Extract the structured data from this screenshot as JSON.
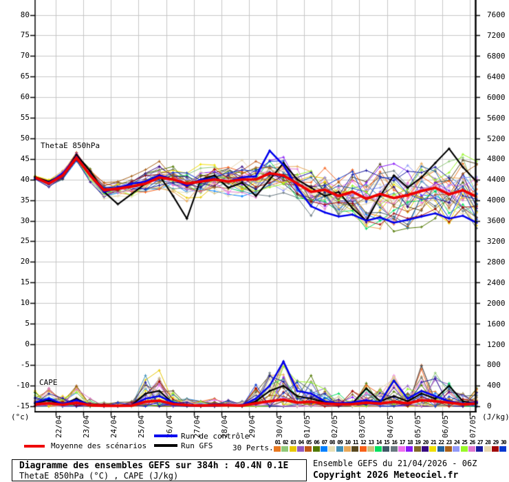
{
  "chart_data": {
    "type": "line",
    "title": "Diagramme des ensembles GEFS sur 384h : 40.4N 0.1E",
    "subtitle": "ThetaE 850hPa (°C) , CAPE (J/kg)",
    "labels": {
      "thetae": "ThetaE 850hPa",
      "cape": "CAPE"
    },
    "left_axis": {
      "unit": "(°c)",
      "ylim": [
        -15,
        80
      ],
      "ticks": [
        80,
        75,
        70,
        65,
        60,
        55,
        50,
        45,
        40,
        35,
        30,
        25,
        20,
        15,
        10,
        5,
        0,
        -5,
        -10,
        -15
      ]
    },
    "right_axis": {
      "unit": "(J/kg)",
      "ylim": [
        0,
        7600
      ],
      "ticks": [
        7600,
        7200,
        6800,
        6400,
        6000,
        5600,
        5200,
        4800,
        4400,
        4000,
        3600,
        3200,
        2800,
        2400,
        2000,
        1600,
        1200,
        800,
        400,
        0
      ]
    },
    "x_axis": {
      "labels": [
        "22/04",
        "23/04",
        "24/04",
        "25/04",
        "26/04",
        "27/04",
        "28/04",
        "29/04",
        "30/04",
        "01/05",
        "02/05",
        "03/05",
        "04/05",
        "05/05",
        "06/05",
        "07/05"
      ],
      "start": "21/04 06Z",
      "hours_total": 384,
      "first_label_offset_h": 18,
      "step_h_between_points": 12,
      "grid": true
    },
    "series": {
      "mean_thetae": [
        40.5,
        39.0,
        41.0,
        45.3,
        41.0,
        37.4,
        37.8,
        38.3,
        39.0,
        40.5,
        40.0,
        39.0,
        39.5,
        40.0,
        39.5,
        40.0,
        40.0,
        41.5,
        41.0,
        39.0,
        37.0,
        37.5,
        36.0,
        37.0,
        35.3,
        36.5,
        35.5,
        36.2,
        37.2,
        38.0,
        36.4,
        37.4,
        35.8
      ],
      "control_thetae": [
        40.3,
        39.2,
        41.5,
        45.5,
        41.0,
        37.0,
        38.0,
        39.0,
        39.5,
        41.0,
        40.0,
        38.5,
        40.0,
        40.2,
        39.5,
        40.5,
        40.8,
        47.0,
        43.5,
        38.0,
        33.5,
        32.0,
        31.0,
        31.5,
        30.0,
        30.8,
        29.5,
        30.2,
        31.0,
        31.8,
        30.5,
        31.2,
        29.5
      ],
      "gfs_thetae": [
        40.6,
        39.5,
        41.2,
        46.0,
        42.0,
        37.0,
        34.0,
        36.5,
        39.0,
        41.0,
        36.0,
        30.5,
        40.0,
        41.0,
        38.0,
        39.2,
        36.0,
        40.0,
        44.0,
        40.0,
        38.0,
        36.0,
        37.0,
        33.0,
        30.0,
        36.0,
        41.0,
        38.0,
        40.5,
        44.0,
        47.5,
        43.0,
        39.5
      ],
      "mean_cape": [
        40,
        60,
        30,
        70,
        20,
        10,
        10,
        15,
        90,
        110,
        45,
        25,
        15,
        25,
        20,
        15,
        60,
        100,
        130,
        75,
        90,
        55,
        40,
        45,
        70,
        55,
        90,
        60,
        120,
        100,
        70,
        40,
        55
      ],
      "control_cape": [
        80,
        150,
        50,
        120,
        30,
        10,
        10,
        20,
        150,
        200,
        80,
        30,
        20,
        40,
        30,
        20,
        150,
        400,
        870,
        300,
        250,
        100,
        60,
        80,
        120,
        80,
        500,
        150,
        300,
        200,
        100,
        50,
        80
      ],
      "gfs_cape": [
        60,
        120,
        40,
        150,
        20,
        10,
        10,
        20,
        250,
        300,
        60,
        20,
        10,
        30,
        20,
        10,
        100,
        300,
        400,
        200,
        150,
        80,
        40,
        60,
        350,
        100,
        200,
        100,
        250,
        150,
        400,
        100,
        60
      ],
      "cape_envelope": [
        300,
        350,
        200,
        400,
        150,
        80,
        80,
        100,
        600,
        700,
        300,
        150,
        100,
        150,
        120,
        100,
        420,
        650,
        870,
        500,
        600,
        350,
        250,
        300,
        450,
        350,
        600,
        400,
        800,
        650,
        450,
        250,
        350
      ],
      "ensemble_spread_thetae": [
        0.5,
        0.9,
        1.1,
        1.3,
        1.6,
        1.9,
        2.1,
        2.3,
        2.5,
        2.7,
        2.9,
        3.1,
        3.3,
        3.4,
        3.6,
        3.7,
        3.9,
        4.1,
        4.3,
        4.6,
        4.8,
        5.1,
        5.3,
        5.5,
        5.7,
        5.9,
        6.1,
        6.3,
        6.4,
        6.6,
        6.7,
        6.9,
        7.0
      ]
    },
    "ensemble_count": 30
  },
  "legend": {
    "mean": {
      "label": "Moyenne des scénarios",
      "color": "#ee0000"
    },
    "control": {
      "label": "Run de contrôle",
      "color": "#0000ee"
    },
    "gfs": {
      "label": "Run GFS",
      "color": "#000000"
    },
    "perts_label": "30 Perts.",
    "pert_numbers": [
      "01",
      "02",
      "03",
      "04",
      "05",
      "06",
      "07",
      "08",
      "09",
      "10",
      "11",
      "12",
      "13",
      "14",
      "15",
      "16",
      "17",
      "18",
      "19",
      "20",
      "21",
      "22",
      "23",
      "24",
      "25",
      "26",
      "27",
      "28",
      "29",
      "30"
    ],
    "pert_colors": [
      "#e87820",
      "#90c878",
      "#e8c800",
      "#9058c0",
      "#c05818",
      "#507800",
      "#0080ff",
      "#e8e0b8",
      "#4090b8",
      "#e8a858",
      "#584820",
      "#f86018",
      "#d0c080",
      "#00e060",
      "#405868",
      "#687880",
      "#f070f0",
      "#8818f8",
      "#806828",
      "#380880",
      "#f0e000",
      "#2060a0",
      "#a86018",
      "#9098f8",
      "#98f828",
      "#e078d0",
      "#1818a0",
      "#e8d8b0",
      "#a00808",
      "#0838d0"
    ]
  },
  "footer": {
    "box": {
      "line1": "Diagramme des ensembles GEFS sur 384h : 40.4N 0.1E",
      "line2": "ThetaE 850hPa (°C) , CAPE (J/kg)"
    },
    "right": {
      "line1": "Ensemble GEFS du 21/04/2026 - 06Z",
      "line2": "Copyright 2026 Meteociel.fr"
    }
  },
  "colors": {
    "grid": "#c6c6c6",
    "axis": "#000000",
    "background": "#ffffff"
  }
}
